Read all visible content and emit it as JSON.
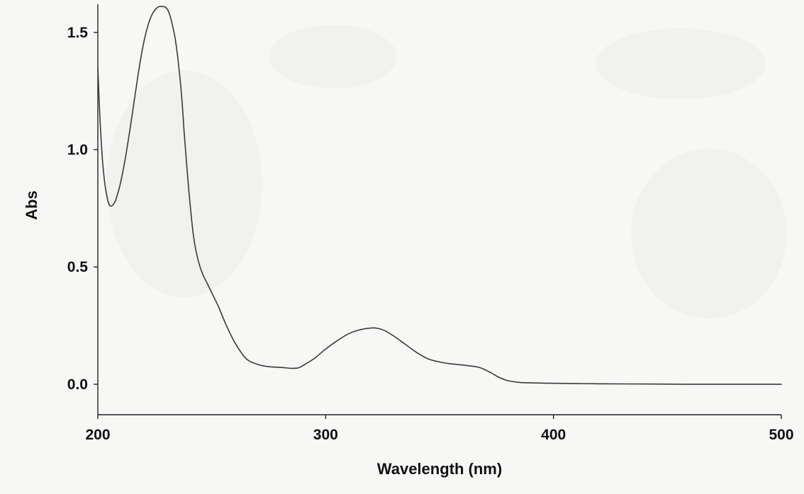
{
  "chart_data": {
    "type": "line",
    "title": "",
    "xlabel": "Wavelength (nm)",
    "ylabel": "Abs",
    "xlim": [
      200,
      500
    ],
    "ylim": [
      -0.13,
      1.62
    ],
    "x_ticks": [
      200,
      300,
      400,
      500
    ],
    "x_tick_labels": [
      "200",
      "300",
      "400",
      "500"
    ],
    "y_ticks": [
      0.0,
      0.5,
      1.0,
      1.5
    ],
    "y_tick_labels": [
      "0.0",
      "0.5",
      "1.0",
      "1.5"
    ],
    "grid": false,
    "legend": "none",
    "series": [
      {
        "color": "#3a3a3a",
        "x": [
          200,
          201,
          202,
          203,
          204,
          205,
          206,
          207,
          208,
          210,
          212,
          214,
          216,
          218,
          220,
          222,
          224,
          226,
          227,
          228,
          229,
          230,
          231,
          232,
          233,
          234,
          235,
          236,
          237,
          238,
          240,
          242,
          244,
          246,
          248,
          250,
          253,
          256,
          260,
          265,
          270,
          275,
          280,
          285,
          288,
          291,
          295,
          300,
          305,
          310,
          315,
          320,
          323,
          326,
          330,
          335,
          340,
          345,
          350,
          355,
          360,
          365,
          368,
          372,
          376,
          380,
          385,
          390,
          395,
          400,
          410,
          420,
          440,
          460,
          480,
          500
        ],
        "y": [
          1.35,
          1.12,
          0.96,
          0.86,
          0.8,
          0.765,
          0.76,
          0.77,
          0.79,
          0.86,
          0.96,
          1.08,
          1.21,
          1.34,
          1.45,
          1.53,
          1.58,
          1.605,
          1.61,
          1.61,
          1.61,
          1.605,
          1.59,
          1.56,
          1.52,
          1.47,
          1.4,
          1.31,
          1.2,
          1.06,
          0.82,
          0.63,
          0.53,
          0.47,
          0.43,
          0.39,
          0.33,
          0.26,
          0.18,
          0.11,
          0.085,
          0.075,
          0.072,
          0.068,
          0.07,
          0.085,
          0.11,
          0.15,
          0.185,
          0.215,
          0.232,
          0.24,
          0.238,
          0.228,
          0.205,
          0.17,
          0.135,
          0.108,
          0.095,
          0.087,
          0.082,
          0.076,
          0.07,
          0.052,
          0.03,
          0.015,
          0.008,
          0.006,
          0.005,
          0.004,
          0.003,
          0.002,
          0.001,
          0.0,
          0.0,
          0.0
        ]
      }
    ]
  }
}
